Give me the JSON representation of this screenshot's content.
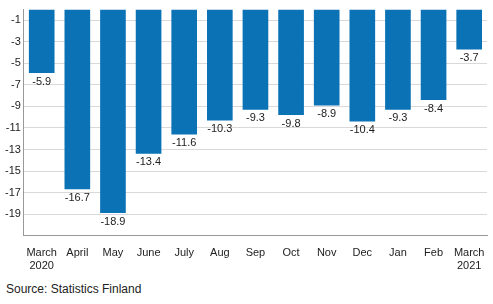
{
  "chart_data": {
    "type": "bar",
    "categories": [
      [
        "March",
        "2020"
      ],
      "April",
      "May",
      "June",
      "July",
      "Aug",
      "Sep",
      "Oct",
      "Nov",
      "Dec",
      "Jan",
      "Feb",
      [
        "March",
        "2021"
      ]
    ],
    "values": [
      -5.9,
      -16.7,
      -18.9,
      -13.4,
      -11.6,
      -10.3,
      -9.3,
      -9.8,
      -8.9,
      -10.4,
      -9.3,
      -8.4,
      -3.7
    ],
    "color": "#0a72b5",
    "ylim": [
      -21,
      0
    ],
    "yticks": [
      -19,
      -17,
      -15,
      -13,
      -11,
      -9,
      -7,
      -5,
      -3,
      -1
    ],
    "grid": true,
    "data_labels": true,
    "source": "Source: Statistics Finland"
  }
}
